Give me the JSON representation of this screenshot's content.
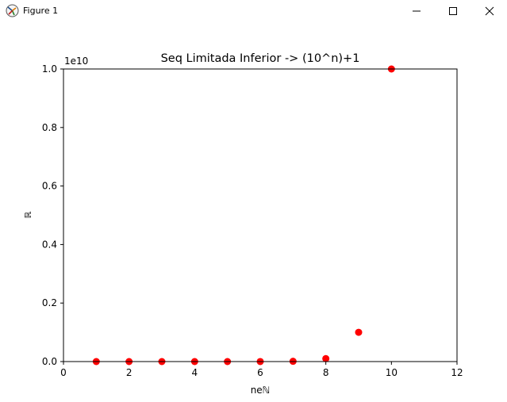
{
  "window": {
    "title": "Figure 1",
    "icons": {
      "app": "matplotlib-figure-icon",
      "minimize": "minimize-icon",
      "maximize": "maximize-icon",
      "close": "close-icon"
    }
  },
  "chart_data": {
    "type": "scatter",
    "title": "Seq Limitada Inferior -> (10^n)+1",
    "xlabel": "neℕ",
    "ylabel": "ℝ",
    "offset_label": "1e10",
    "y_scale_factor": 10000000000,
    "xlim": [
      0,
      12
    ],
    "ylim": [
      0,
      1.0
    ],
    "x_ticks": [
      0,
      2,
      4,
      6,
      8,
      10,
      12
    ],
    "y_ticks": [
      0.0,
      0.2,
      0.4,
      0.6,
      0.8,
      1.0
    ],
    "x_tick_labels": [
      "0",
      "2",
      "4",
      "6",
      "8",
      "10",
      "12"
    ],
    "y_tick_labels": [
      "0.0",
      "0.2",
      "0.4",
      "0.6",
      "0.8",
      "1.0"
    ],
    "grid": false,
    "marker_color": "#ff0000",
    "series": [
      {
        "x": [
          1,
          2,
          3,
          4,
          5,
          6,
          7,
          8,
          9,
          10
        ],
        "y": [
          11,
          101,
          1001,
          10001,
          100001,
          1000001,
          10000001,
          100000001,
          1000000001,
          10000000001
        ]
      }
    ]
  }
}
